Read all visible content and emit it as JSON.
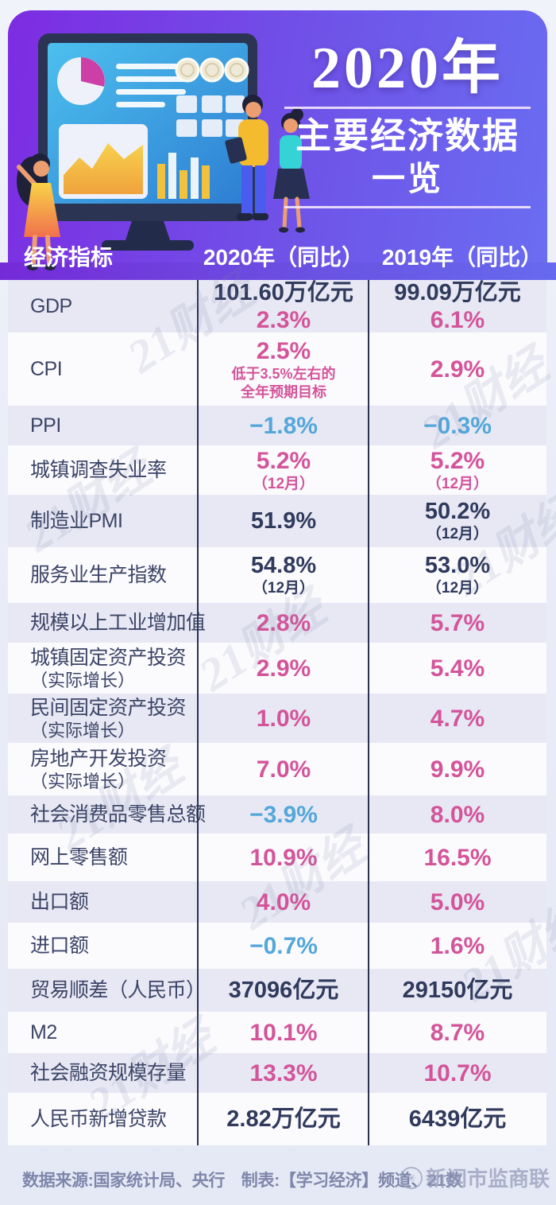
{
  "header": {
    "year_title": "2020年",
    "subtitle": "主要经济数据",
    "subtitle2": "一览",
    "col_indicator": "经济指标",
    "col_2020": "2020年（同比）",
    "col_2019": "2019年（同比）"
  },
  "colors": {
    "accent_pink": "#d4549a",
    "accent_blue": "#54a7d9",
    "text_navy": "#303a5c",
    "header_purple_left": "#7d2ce2",
    "header_purple_right": "#6a6df2",
    "row_shade": "#e7e8f4"
  },
  "watermark": {
    "text": "21财经"
  },
  "rows": [
    {
      "label": "GDP",
      "label2": "",
      "v2020": [
        {
          "t": "101.60万亿元",
          "s": "navy"
        },
        {
          "t": "2.3%",
          "s": "pink"
        }
      ],
      "v2019": [
        {
          "t": "99.09万亿元",
          "s": "navy"
        },
        {
          "t": "6.1%",
          "s": "pink"
        }
      ]
    },
    {
      "label": "CPI",
      "label2": "",
      "v2020": [
        {
          "t": "2.5%",
          "s": "pink"
        },
        {
          "t": "低于3.5%左右的",
          "s": "pinknote"
        },
        {
          "t": "全年预期目标",
          "s": "pinknote"
        }
      ],
      "v2019": [
        {
          "t": "2.9%",
          "s": "pink"
        }
      ]
    },
    {
      "label": "PPI",
      "label2": "",
      "v2020": [
        {
          "t": "−1.8%",
          "s": "blue"
        }
      ],
      "v2019": [
        {
          "t": "−0.3%",
          "s": "blue"
        }
      ]
    },
    {
      "label": "城镇调查失业率",
      "label2": "",
      "v2020": [
        {
          "t": "5.2%",
          "s": "pink"
        },
        {
          "t": "（12月）",
          "s": "pinksub"
        }
      ],
      "v2019": [
        {
          "t": "5.2%",
          "s": "pink"
        },
        {
          "t": "（12月）",
          "s": "pinksub"
        }
      ]
    },
    {
      "label": "制造业PMI",
      "label2": "",
      "v2020": [
        {
          "t": "51.9%",
          "s": "navy"
        }
      ],
      "v2019": [
        {
          "t": "50.2%",
          "s": "navy"
        },
        {
          "t": "（12月）",
          "s": "navysub"
        }
      ]
    },
    {
      "label": "服务业生产指数",
      "label2": "",
      "v2020": [
        {
          "t": "54.8%",
          "s": "navy"
        },
        {
          "t": "（12月）",
          "s": "navysub"
        }
      ],
      "v2019": [
        {
          "t": "53.0%",
          "s": "navy"
        },
        {
          "t": "（12月）",
          "s": "navysub"
        }
      ]
    },
    {
      "label": "规模以上工业增加值",
      "label2": "",
      "v2020": [
        {
          "t": "2.8%",
          "s": "pink"
        }
      ],
      "v2019": [
        {
          "t": "5.7%",
          "s": "pink"
        }
      ]
    },
    {
      "label": "城镇固定资产投资",
      "label2": "（实际增长）",
      "v2020": [
        {
          "t": "2.9%",
          "s": "pink"
        }
      ],
      "v2019": [
        {
          "t": "5.4%",
          "s": "pink"
        }
      ]
    },
    {
      "label": "民间固定资产投资",
      "label2": "（实际增长）",
      "v2020": [
        {
          "t": "1.0%",
          "s": "pink"
        }
      ],
      "v2019": [
        {
          "t": "4.7%",
          "s": "pink"
        }
      ]
    },
    {
      "label": "房地产开发投资",
      "label2": "（实际增长）",
      "v2020": [
        {
          "t": "7.0%",
          "s": "pink"
        }
      ],
      "v2019": [
        {
          "t": "9.9%",
          "s": "pink"
        }
      ]
    },
    {
      "label": "社会消费品零售总额",
      "label2": "",
      "v2020": [
        {
          "t": "−3.9%",
          "s": "blue"
        }
      ],
      "v2019": [
        {
          "t": "8.0%",
          "s": "pink"
        }
      ]
    },
    {
      "label": "网上零售额",
      "label2": "",
      "v2020": [
        {
          "t": "10.9%",
          "s": "pink"
        }
      ],
      "v2019": [
        {
          "t": "16.5%",
          "s": "pink"
        }
      ]
    },
    {
      "label": "出口额",
      "label2": "",
      "v2020": [
        {
          "t": "4.0%",
          "s": "pink"
        }
      ],
      "v2019": [
        {
          "t": "5.0%",
          "s": "pink"
        }
      ]
    },
    {
      "label": "进口额",
      "label2": "",
      "v2020": [
        {
          "t": "−0.7%",
          "s": "blue"
        }
      ],
      "v2019": [
        {
          "t": "1.6%",
          "s": "pink"
        }
      ]
    },
    {
      "label": "贸易顺差（人民币）",
      "label2": "",
      "v2020": [
        {
          "t": "37096亿元",
          "s": "navy"
        }
      ],
      "v2019": [
        {
          "t": "29150亿元",
          "s": "navy"
        }
      ]
    },
    {
      "label": "M2",
      "label2": "",
      "v2020": [
        {
          "t": "10.1%",
          "s": "pink"
        }
      ],
      "v2019": [
        {
          "t": "8.7%",
          "s": "pink"
        }
      ]
    },
    {
      "label": "社会融资规模存量",
      "label2": "",
      "v2020": [
        {
          "t": "13.3%",
          "s": "pink"
        }
      ],
      "v2019": [
        {
          "t": "10.7%",
          "s": "pink"
        }
      ]
    },
    {
      "label": "人民币新增贷款",
      "label2": "",
      "v2020": [
        {
          "t": "2.82万亿元",
          "s": "navy"
        }
      ],
      "v2019": [
        {
          "t": "6439亿元",
          "s": "navy"
        }
      ]
    }
  ],
  "footer": {
    "source": "数据来源:国家统计局、央行　制表:【学习经济】频道、21数",
    "logo": "新闻市监商联",
    "logo_glyph": "✳"
  },
  "chart_data": {
    "type": "table",
    "title": "2020年主要经济数据一览",
    "columns": [
      "经济指标",
      "2020年（同比）",
      "2019年（同比）"
    ],
    "rows": [
      [
        "GDP",
        "101.60万亿元 / 2.3%",
        "99.09万亿元 / 6.1%"
      ],
      [
        "CPI",
        "2.5%（低于3.5%左右的全年预期目标）",
        "2.9%"
      ],
      [
        "PPI",
        "−1.8%",
        "−0.3%"
      ],
      [
        "城镇调查失业率",
        "5.2%（12月）",
        "5.2%（12月）"
      ],
      [
        "制造业PMI",
        "51.9%",
        "50.2%（12月）"
      ],
      [
        "服务业生产指数",
        "54.8%（12月）",
        "53.0%（12月）"
      ],
      [
        "规模以上工业增加值",
        "2.8%",
        "5.7%"
      ],
      [
        "城镇固定资产投资（实际增长）",
        "2.9%",
        "5.4%"
      ],
      [
        "民间固定资产投资（实际增长）",
        "1.0%",
        "4.7%"
      ],
      [
        "房地产开发投资（实际增长）",
        "7.0%",
        "9.9%"
      ],
      [
        "社会消费品零售总额",
        "−3.9%",
        "8.0%"
      ],
      [
        "网上零售额",
        "10.9%",
        "16.5%"
      ],
      [
        "出口额",
        "4.0%",
        "5.0%"
      ],
      [
        "进口额",
        "−0.7%",
        "1.6%"
      ],
      [
        "贸易顺差（人民币）",
        "37096亿元",
        "29150亿元"
      ],
      [
        "M2",
        "10.1%",
        "8.7%"
      ],
      [
        "社会融资规模存量",
        "13.3%",
        "10.7%"
      ],
      [
        "人民币新增贷款",
        "2.82万亿元",
        "6439亿元"
      ]
    ]
  }
}
